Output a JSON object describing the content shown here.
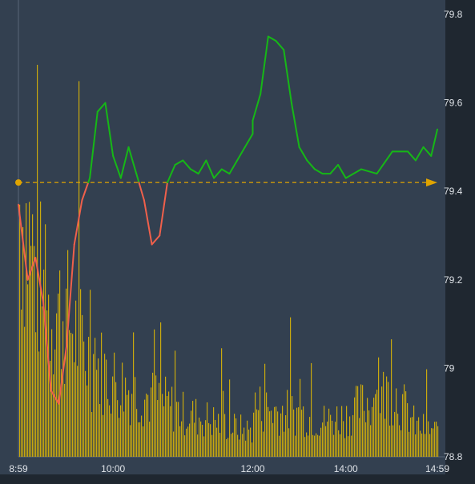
{
  "chart_data": {
    "type": "line",
    "title": "",
    "xlabel": "",
    "ylabel": "",
    "x_ticks": [
      "8:59",
      "10:00",
      "12:00",
      "14:00",
      "14:59"
    ],
    "y_ticks": [
      "78.8",
      "79",
      "79.2",
      "79.4",
      "79.6",
      "79.8"
    ],
    "ylim": [
      78.8,
      79.8
    ],
    "grid": false,
    "colors": {
      "background": "#334050",
      "page": "#1f2730",
      "price_up": "#16b816",
      "price_down": "#f0604b",
      "volume": "#c9a90e",
      "reference": "#e0a400",
      "axis_text": "#dfe3e8"
    },
    "reference_price": 79.42,
    "price": {
      "x": [
        "8:59",
        "9:05",
        "9:10",
        "9:15",
        "9:20",
        "9:25",
        "9:30",
        "9:35",
        "9:40",
        "9:45",
        "9:50",
        "9:55",
        "10:00",
        "10:05",
        "10:10",
        "10:15",
        "10:20",
        "10:25",
        "10:30",
        "10:35",
        "10:40",
        "10:45",
        "10:50",
        "10:55",
        "11:00",
        "11:05",
        "11:10",
        "11:15",
        "11:20",
        "11:25",
        "11:30",
        "13:00",
        "13:05",
        "13:10",
        "13:15",
        "13:20",
        "13:25",
        "13:30",
        "13:35",
        "13:40",
        "13:45",
        "13:50",
        "13:55",
        "14:00",
        "14:10",
        "14:20",
        "14:30",
        "14:40",
        "14:45",
        "14:50",
        "14:55",
        "14:59"
      ],
      "y": [
        79.37,
        79.2,
        79.25,
        79.15,
        78.95,
        78.92,
        79.05,
        79.28,
        79.38,
        79.43,
        79.58,
        79.6,
        79.48,
        79.43,
        79.5,
        79.44,
        79.38,
        79.28,
        79.3,
        79.42,
        79.46,
        79.47,
        79.45,
        79.44,
        79.47,
        79.43,
        79.45,
        79.44,
        79.47,
        79.5,
        79.53,
        79.56,
        79.62,
        79.75,
        79.74,
        79.72,
        79.6,
        79.5,
        79.47,
        79.45,
        79.44,
        79.44,
        79.46,
        79.43,
        79.45,
        79.44,
        79.49,
        79.49,
        79.47,
        79.5,
        79.48,
        79.54
      ]
    },
    "volume": {
      "x": [
        "9:00",
        "9:15",
        "9:30",
        "9:45",
        "10:00",
        "10:15",
        "10:30",
        "10:45",
        "11:00",
        "11:15",
        "11:30",
        "13:00",
        "13:15",
        "13:30",
        "13:45",
        "14:00",
        "14:15",
        "14:30",
        "14:45",
        "14:59"
      ],
      "values": [
        1.0,
        0.62,
        0.55,
        0.38,
        0.3,
        0.25,
        0.22,
        0.17,
        0.15,
        0.12,
        0.1,
        0.2,
        0.18,
        0.17,
        0.14,
        0.16,
        0.22,
        0.26,
        0.12,
        0.1
      ]
    }
  }
}
